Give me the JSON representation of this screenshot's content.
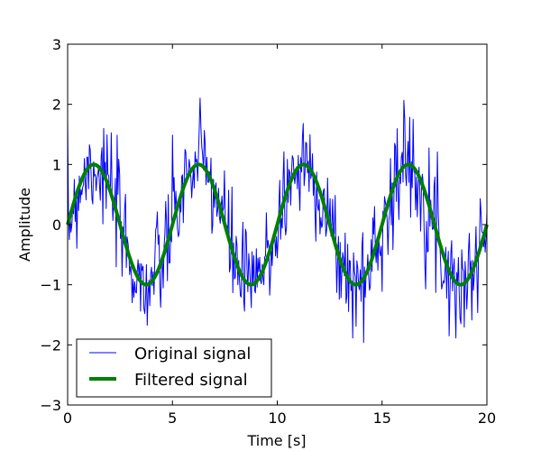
{
  "chart_data": {
    "type": "line",
    "title": "",
    "xlabel": "Time [s]",
    "ylabel": "Amplitude",
    "xlim": [
      0,
      20
    ],
    "ylim": [
      -3,
      3
    ],
    "xticks": [
      0,
      5,
      10,
      15,
      20
    ],
    "yticks": [
      -3,
      -2,
      -1,
      0,
      1,
      2,
      3
    ],
    "grid": false,
    "legend_position": "lower left",
    "series": [
      {
        "name": "Original signal",
        "color": "#0000ff",
        "line_width": 1,
        "description": "sine wave (amplitude 1, period ~5 s) plus random noise, range approx -2.1 to 2.3",
        "generator": {
          "amplitude": 1.0,
          "period": 5.0,
          "noise_std": 0.45,
          "samples": 500,
          "seed": 7
        }
      },
      {
        "name": "Filtered signal",
        "color": "#008000",
        "line_width": 4,
        "description": "smooth sine wave, amplitude ~1, period ~5 s, peaks at ~1.25, 6.25, 11.25, 16.25 s",
        "generator": {
          "amplitude": 1.0,
          "period": 5.0,
          "samples": 400
        }
      }
    ]
  }
}
